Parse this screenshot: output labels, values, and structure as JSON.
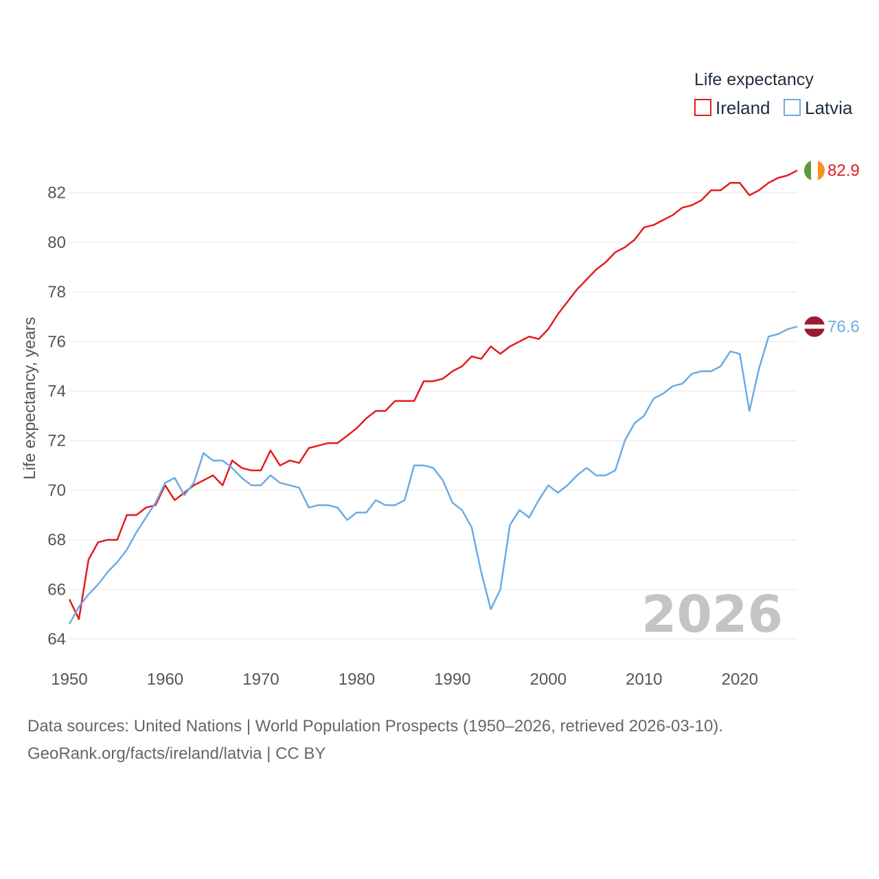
{
  "chart_data": {
    "type": "line",
    "title": "Life expectancy",
    "ylabel": "Life expectancy, years",
    "xlabel": "",
    "xlim": [
      1950,
      2026
    ],
    "ylim": [
      63.5,
      83.5
    ],
    "x_ticks": [
      1950,
      1960,
      1970,
      1980,
      1990,
      2000,
      2010,
      2020
    ],
    "y_ticks": [
      64,
      66,
      68,
      70,
      72,
      74,
      76,
      78,
      80,
      82
    ],
    "grid": true,
    "legend_position": "top-right",
    "watermark_year": "2026",
    "x": [
      1950,
      1951,
      1952,
      1953,
      1954,
      1955,
      1956,
      1957,
      1958,
      1959,
      1960,
      1961,
      1962,
      1963,
      1964,
      1965,
      1966,
      1967,
      1968,
      1969,
      1970,
      1971,
      1972,
      1973,
      1974,
      1975,
      1976,
      1977,
      1978,
      1979,
      1980,
      1981,
      1982,
      1983,
      1984,
      1985,
      1986,
      1987,
      1988,
      1989,
      1990,
      1991,
      1992,
      1993,
      1994,
      1995,
      1996,
      1997,
      1998,
      1999,
      2000,
      2001,
      2002,
      2003,
      2004,
      2005,
      2006,
      2007,
      2008,
      2009,
      2010,
      2011,
      2012,
      2013,
      2014,
      2015,
      2016,
      2017,
      2018,
      2019,
      2020,
      2021,
      2022,
      2023,
      2024,
      2025,
      2026
    ],
    "series": [
      {
        "name": "Ireland",
        "color": "#e31a1c",
        "end_label": "82.9",
        "flag": "ireland-flag",
        "values": [
          65.6,
          64.8,
          67.2,
          67.9,
          68.0,
          68.0,
          69.0,
          69.0,
          69.3,
          69.4,
          70.2,
          69.6,
          69.9,
          70.2,
          70.4,
          70.6,
          70.2,
          71.2,
          70.9,
          70.8,
          70.8,
          71.6,
          71.0,
          71.2,
          71.1,
          71.7,
          71.8,
          71.9,
          71.9,
          72.2,
          72.5,
          72.9,
          73.2,
          73.2,
          73.6,
          73.6,
          73.6,
          74.4,
          74.4,
          74.5,
          74.8,
          75.0,
          75.4,
          75.3,
          75.8,
          75.5,
          75.8,
          76.0,
          76.2,
          76.1,
          76.5,
          77.1,
          77.6,
          78.1,
          78.5,
          78.9,
          79.2,
          79.6,
          79.8,
          80.1,
          80.6,
          80.7,
          80.9,
          81.1,
          81.4,
          81.5,
          81.7,
          82.1,
          82.1,
          82.4,
          82.4,
          81.9,
          82.1,
          82.4,
          82.6,
          82.7,
          82.9
        ]
      },
      {
        "name": "Latvia",
        "color": "#6aabe4",
        "end_label": "76.6",
        "flag": "latvia-flag",
        "values": [
          64.6,
          65.3,
          65.8,
          66.2,
          66.7,
          67.1,
          67.6,
          68.3,
          68.9,
          69.5,
          70.3,
          70.5,
          69.8,
          70.3,
          71.5,
          71.2,
          71.2,
          70.9,
          70.5,
          70.2,
          70.2,
          70.6,
          70.3,
          70.2,
          70.1,
          69.3,
          69.4,
          69.4,
          69.3,
          68.8,
          69.1,
          69.1,
          69.6,
          69.4,
          69.4,
          69.6,
          71.0,
          71.0,
          70.9,
          70.4,
          69.5,
          69.2,
          68.5,
          66.7,
          65.2,
          66.0,
          68.6,
          69.2,
          68.9,
          69.6,
          70.2,
          69.9,
          70.2,
          70.6,
          70.9,
          70.6,
          70.6,
          70.8,
          72.0,
          72.7,
          73.0,
          73.7,
          73.9,
          74.2,
          74.3,
          74.7,
          74.8,
          74.8,
          75.0,
          75.6,
          75.5,
          73.2,
          74.9,
          76.2,
          76.3,
          76.5,
          76.6
        ]
      }
    ]
  },
  "footer": {
    "line1": "Data sources: United Nations | World Population Prospects (1950–2026, retrieved 2026-03-10).",
    "line2": "GeoRank.org/facts/ireland/latvia | CC BY"
  }
}
